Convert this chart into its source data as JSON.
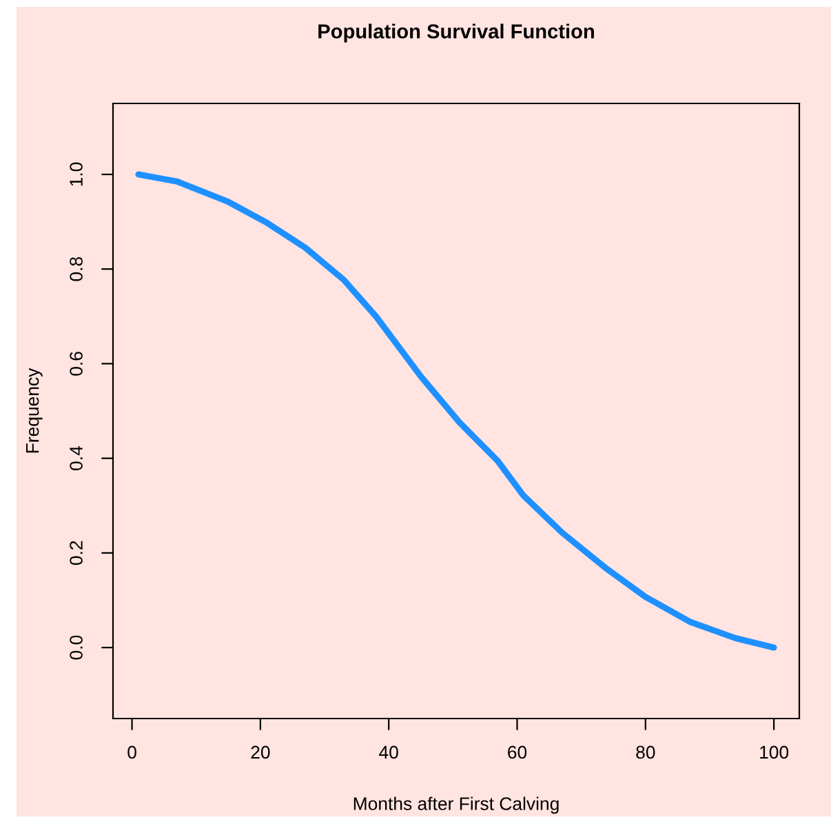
{
  "chart_data": {
    "type": "line",
    "title": "Population Survival Function",
    "xlabel": "Months after First Calving",
    "ylabel": "Frequency",
    "x": [
      1,
      7,
      15,
      21,
      27,
      33,
      38,
      45,
      51,
      57,
      61,
      67,
      74,
      80,
      87,
      94,
      100
    ],
    "series": [
      {
        "color": "#1e90ff",
        "values": [
          1.0,
          0.985,
          0.942,
          0.898,
          0.845,
          0.777,
          0.7,
          0.573,
          0.476,
          0.394,
          0.321,
          0.243,
          0.166,
          0.107,
          0.054,
          0.02,
          0.0
        ]
      }
    ],
    "xlim": [
      -2.96,
      103.96
    ],
    "ylim": [
      -0.15,
      1.15
    ],
    "xticks": [
      0,
      20,
      40,
      60,
      80,
      100
    ],
    "yticks": [
      {
        "value": 0,
        "label": "0.0"
      },
      {
        "value": 0.2,
        "label": "0.2"
      },
      {
        "value": 0.4,
        "label": "0.4"
      },
      {
        "value": 0.6,
        "label": "0.6"
      },
      {
        "value": 0.8,
        "label": "0.8"
      },
      {
        "value": 1,
        "label": "1.0"
      }
    ],
    "grid": false,
    "legend": false,
    "marker": "none",
    "line_style": "solid"
  }
}
